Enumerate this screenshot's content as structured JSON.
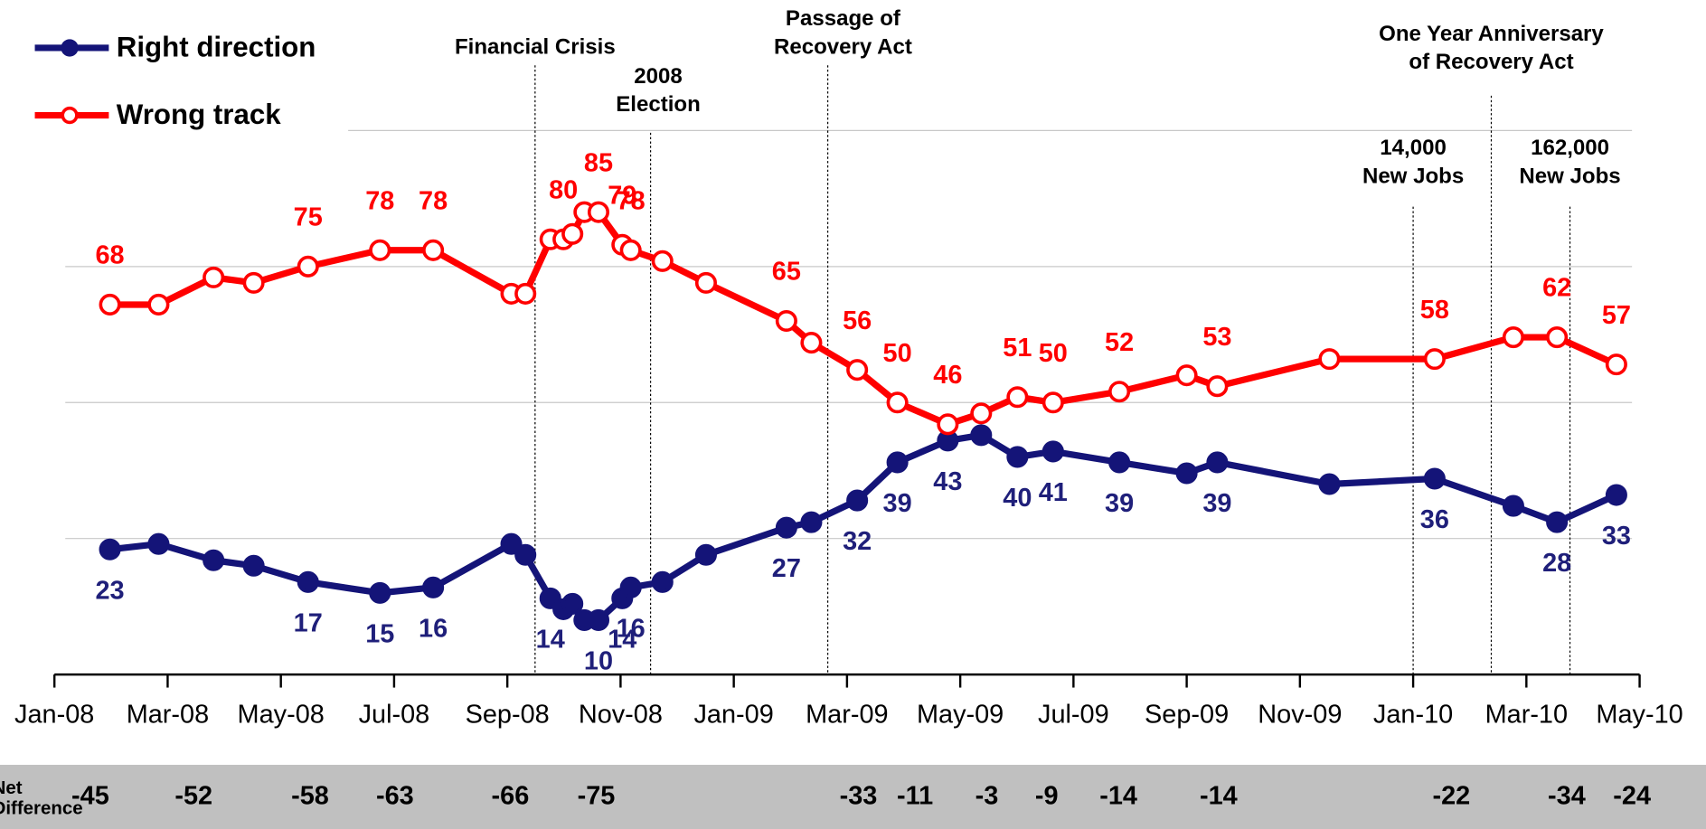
{
  "chart_data": {
    "type": "line",
    "x": [
      0.98,
      1.84,
      2.81,
      3.52,
      4.48,
      5.75,
      6.69,
      8.07,
      8.32,
      8.76,
      8.99,
      9.15,
      9.36,
      9.61,
      10.03,
      10.18,
      10.74,
      11.51,
      12.93,
      13.37,
      14.18,
      14.89,
      15.78,
      16.37,
      17.01,
      17.64,
      18.81,
      20.0,
      20.54,
      22.52,
      24.38,
      25.77,
      26.54,
      27.59
    ],
    "series": [
      {
        "name": "Right direction",
        "color": "#141478",
        "marker": "filled",
        "values": [
          23,
          24,
          21,
          20,
          17,
          15,
          16,
          24,
          22,
          14,
          12,
          13,
          10,
          10,
          14,
          16,
          17,
          22,
          27,
          28,
          32,
          39,
          43,
          44,
          40,
          41,
          39,
          37,
          39,
          35,
          36,
          31,
          28,
          33
        ],
        "value_labels": [
          "23",
          null,
          null,
          null,
          "17",
          "15",
          "16",
          null,
          null,
          "14",
          null,
          null,
          null,
          "10",
          "14",
          "16",
          null,
          null,
          "27",
          null,
          "32",
          "39",
          "43",
          null,
          "40",
          "41",
          "39",
          null,
          "39",
          null,
          "36",
          null,
          "28",
          "33"
        ]
      },
      {
        "name": "Wrong track",
        "color": "#ff0000",
        "marker": "open",
        "values": [
          68,
          68,
          73,
          72,
          75,
          78,
          78,
          70,
          70,
          80,
          80,
          81,
          85,
          85,
          79,
          78,
          76,
          72,
          65,
          61,
          56,
          50,
          46,
          48,
          51,
          50,
          52,
          55,
          53,
          58,
          58,
          62,
          62,
          57
        ],
        "value_labels": [
          "68",
          null,
          null,
          null,
          "75",
          "78",
          "78",
          null,
          null,
          null,
          "80",
          null,
          null,
          "85",
          "79",
          "78",
          null,
          null,
          "65",
          null,
          "56",
          "50",
          "46",
          null,
          "51",
          "50",
          "52",
          null,
          "53",
          null,
          "58",
          null,
          "62",
          "57"
        ]
      }
    ],
    "xlim": [
      0,
      28
    ],
    "xticks": [
      {
        "value": 0,
        "label": "Jan-08"
      },
      {
        "value": 2,
        "label": "Mar-08"
      },
      {
        "value": 4,
        "label": "May-08"
      },
      {
        "value": 6,
        "label": "Jul-08"
      },
      {
        "value": 8,
        "label": "Sep-08"
      },
      {
        "value": 10,
        "label": "Nov-08"
      },
      {
        "value": 12,
        "label": "Jan-09"
      },
      {
        "value": 14,
        "label": "Mar-09"
      },
      {
        "value": 16,
        "label": "May-09"
      },
      {
        "value": 18,
        "label": "Jul-09"
      },
      {
        "value": 20,
        "label": "Sep-09"
      },
      {
        "value": 22,
        "label": "Nov-09"
      },
      {
        "value": 24,
        "label": "Jan-10"
      },
      {
        "value": 26,
        "label": "Mar-10"
      },
      {
        "value": 28,
        "label": "May-10"
      }
    ],
    "ylim": [
      0,
      100
    ],
    "gridlines": [
      25,
      50,
      75,
      100
    ],
    "grid": true,
    "legend": "upper left",
    "annotations": [
      {
        "x": 8.49,
        "lines": [
          "Financial Crisis"
        ]
      },
      {
        "x": 10.53,
        "lines": [
          "2008",
          "Election"
        ]
      },
      {
        "x": 13.66,
        "lines": [
          "Passage of",
          "Recovery Act"
        ]
      },
      {
        "x": 24.0,
        "lines": [
          "14,000",
          "New Jobs"
        ]
      },
      {
        "x": 25.38,
        "lines": [
          "One Year Anniversary",
          "of Recovery Act"
        ]
      },
      {
        "x": 26.77,
        "lines": [
          "162,000",
          "New Jobs"
        ]
      }
    ],
    "net_difference": {
      "label": [
        "Net",
        "Difference"
      ],
      "values": [
        -45,
        -52,
        -58,
        -63,
        -66,
        -75,
        -33,
        -11,
        -3,
        -9,
        -14,
        -14,
        -22,
        -34,
        -24
      ]
    }
  }
}
